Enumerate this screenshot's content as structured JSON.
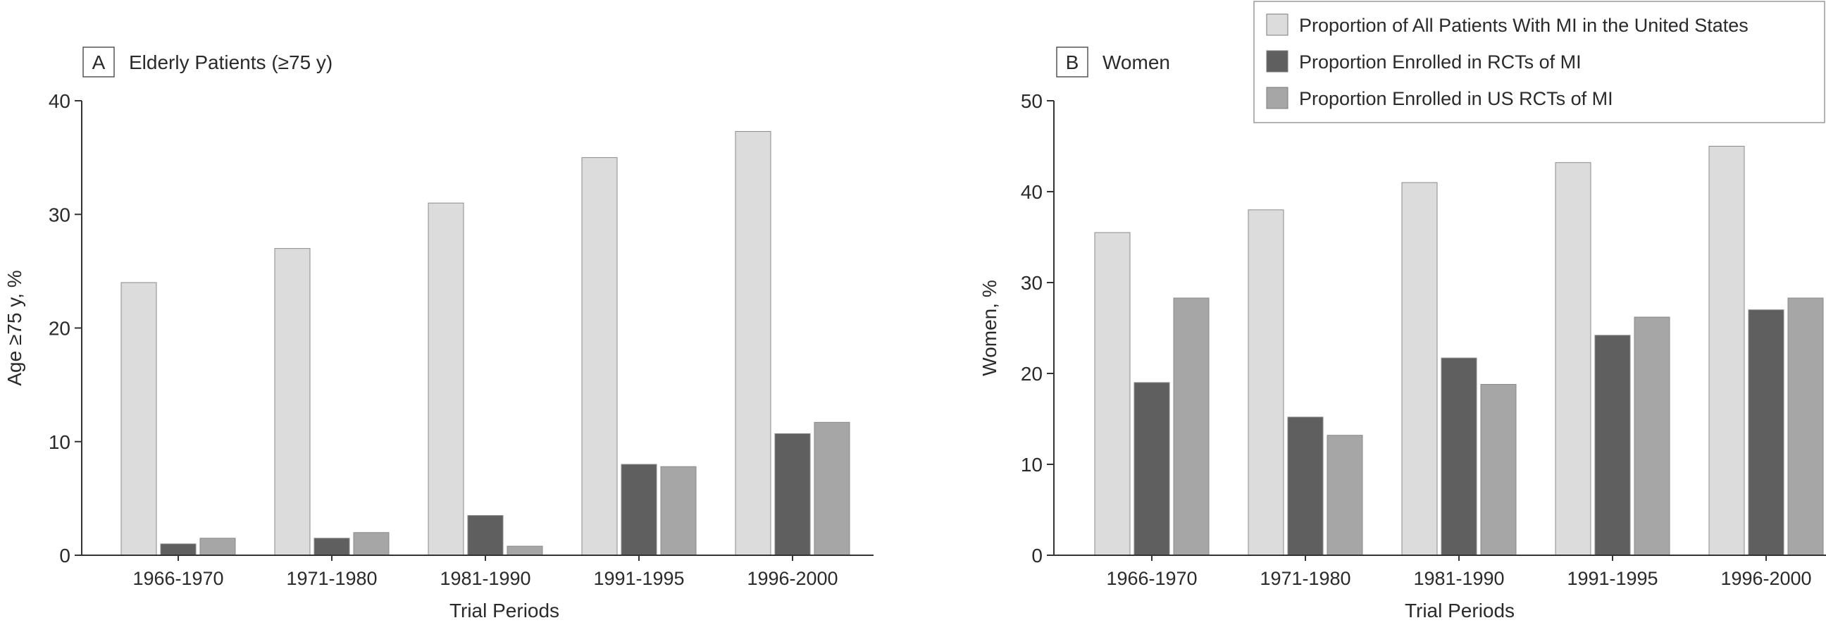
{
  "legend": {
    "placement": "top-right",
    "entries": [
      {
        "label": "Proportion of All Patients With MI in the United States",
        "color": "#dcdcdc"
      },
      {
        "label": "Proportion Enrolled in RCTs of MI",
        "color": "#5f5f5f"
      },
      {
        "label": "Proportion Enrolled in US RCTs of MI",
        "color": "#a6a6a6"
      }
    ]
  },
  "chart_data": [
    {
      "type": "bar",
      "panel_letter": "A",
      "title": "Elderly Patients (≥75 y)",
      "xlabel": "Trial Periods",
      "ylabel": "Age ≥75 y, %",
      "ylim": [
        0,
        40
      ],
      "yticks": [
        0,
        10,
        20,
        30,
        40
      ],
      "grid": false,
      "categories": [
        "1966-1970",
        "1971-1980",
        "1981-1990",
        "1991-1995",
        "1996-2000"
      ],
      "series": [
        {
          "name": "Proportion of All Patients With MI in the United States",
          "values": [
            24,
            27,
            31,
            35,
            37.3
          ],
          "color": "#dcdcdc"
        },
        {
          "name": "Proportion Enrolled in RCTs of MI",
          "values": [
            1,
            1.5,
            3.5,
            8,
            10.7
          ],
          "color": "#5f5f5f"
        },
        {
          "name": "Proportion Enrolled in US RCTs of MI",
          "values": [
            1.5,
            2,
            0.8,
            7.8,
            11.7
          ],
          "color": "#a6a6a6"
        }
      ]
    },
    {
      "type": "bar",
      "panel_letter": "B",
      "title": "Women",
      "xlabel": "Trial Periods",
      "ylabel": "Women, %",
      "ylim": [
        0,
        50
      ],
      "yticks": [
        0,
        10,
        20,
        30,
        40,
        50
      ],
      "grid": false,
      "categories": [
        "1966-1970",
        "1971-1980",
        "1981-1990",
        "1991-1995",
        "1996-2000"
      ],
      "series": [
        {
          "name": "Proportion of All Patients With MI in the United States",
          "values": [
            35.5,
            38,
            41,
            43.2,
            45
          ],
          "color": "#dcdcdc"
        },
        {
          "name": "Proportion Enrolled in RCTs of MI",
          "values": [
            19,
            15.2,
            21.7,
            24.2,
            27
          ],
          "color": "#5f5f5f"
        },
        {
          "name": "Proportion Enrolled in US RCTs of MI",
          "values": [
            28.3,
            13.2,
            18.8,
            26.2,
            28.3
          ],
          "color": "#a6a6a6"
        }
      ]
    }
  ]
}
